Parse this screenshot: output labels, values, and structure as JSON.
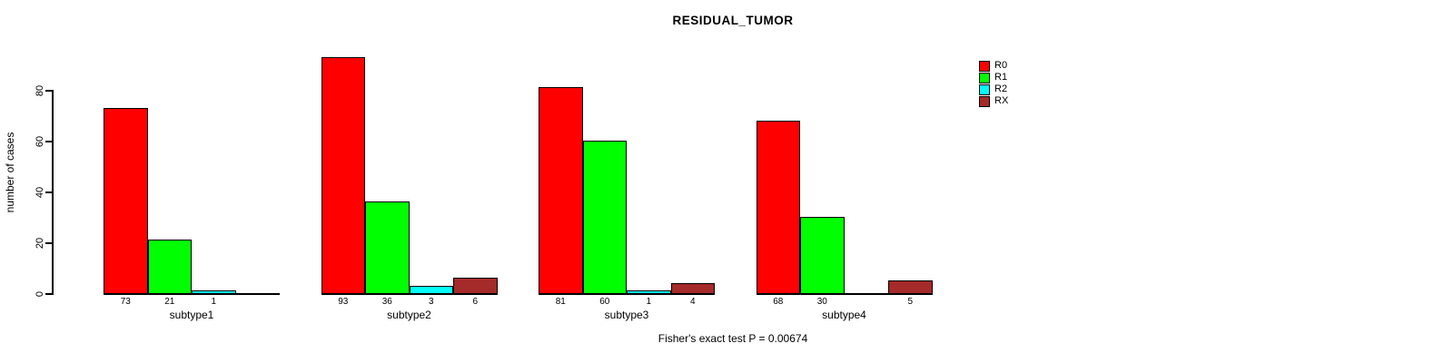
{
  "title": "RESIDUAL_TUMOR",
  "ylabel": "number of cases",
  "footer": "Fisher's exact test P = 0.00674",
  "chart_data": {
    "type": "bar",
    "title": "RESIDUAL_TUMOR",
    "xlabel": "",
    "ylabel": "number of cases",
    "categories": [
      "subtype1",
      "subtype2",
      "subtype3",
      "subtype4"
    ],
    "series": [
      {
        "name": "R0",
        "color": "#FF0000",
        "values": [
          73,
          93,
          81,
          68
        ]
      },
      {
        "name": "R1",
        "color": "#00FF00",
        "values": [
          21,
          36,
          60,
          30
        ]
      },
      {
        "name": "R2",
        "color": "#00FFFF",
        "values": [
          1,
          3,
          1,
          0
        ]
      },
      {
        "name": "RX",
        "color": "#A52A2A",
        "values": [
          0,
          6,
          4,
          5
        ]
      }
    ],
    "ylim": [
      0,
      80
    ],
    "yticks": [
      0,
      20,
      40,
      60,
      80
    ],
    "grid": false,
    "legend_position": "top-right",
    "bar_value_labels_shown": true,
    "zero_values_unlabeled": true,
    "annotation": "Fisher's exact test P = 0.00674"
  }
}
